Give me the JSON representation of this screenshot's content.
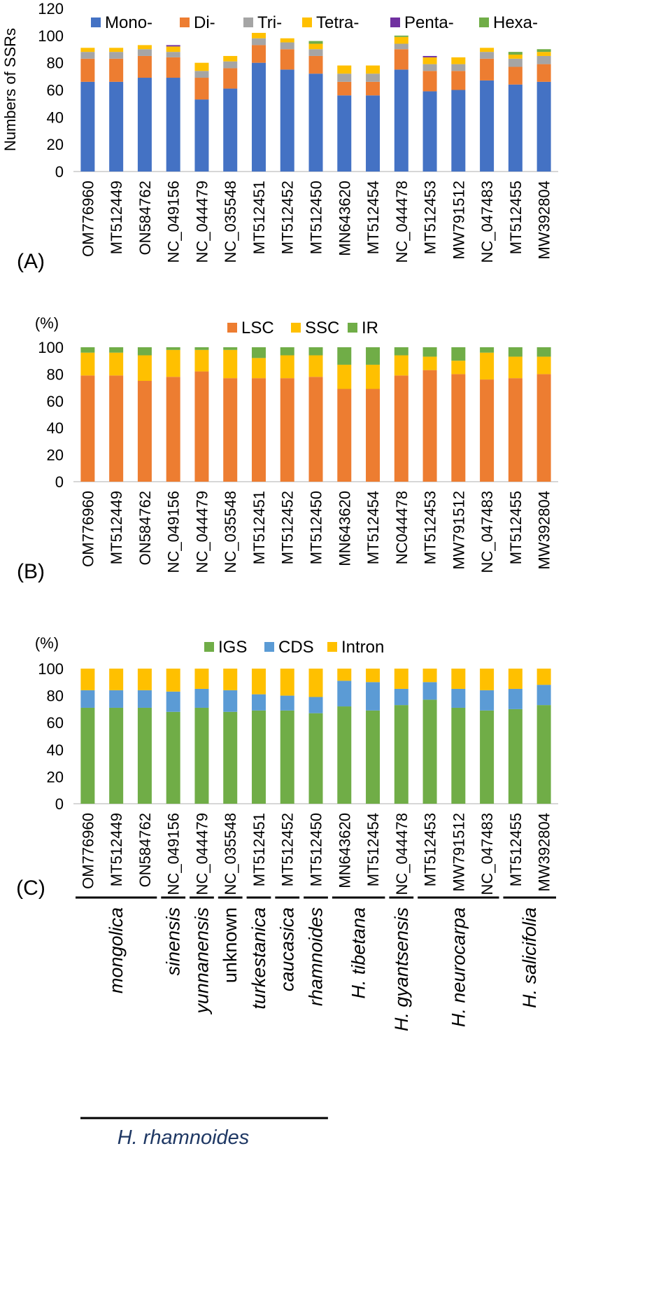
{
  "accessions_A": [
    "OM776960",
    "MT512449",
    "ON584762",
    "NC_049156",
    "NC_044479",
    "NC_035548",
    "MT512451",
    "MT512452",
    "MT512450",
    "MN643620",
    "MT512454",
    "NC_044478",
    "MT512453",
    "MW791512",
    "NC_047483",
    "MT512455",
    "MW392804"
  ],
  "accessions_B": [
    "OM776960",
    "MT512449",
    "ON584762",
    "NC_049156",
    "NC_044479",
    "NC_035548",
    "MT512451",
    "MT512452",
    "MT512450",
    "MN643620",
    "MT512454",
    "NC044478",
    "MT512453",
    "MW791512",
    "NC_047483",
    "MT512455",
    "MW392804"
  ],
  "accessions_C": [
    "OM776960",
    "MT512449",
    "ON584762",
    "NC_049156",
    "NC_044479",
    "NC_035548",
    "MT512451",
    "MT512452",
    "MT512450",
    "MN643620",
    "MT512454",
    "NC_044478",
    "MT512453",
    "MW791512",
    "NC_047483",
    "MT512455",
    "MW392804"
  ],
  "chart_data": [
    {
      "type": "bar",
      "stacked": true,
      "panel_label": "(A)",
      "ylabel": "Numbers of SSRs",
      "ylim": [
        0,
        120
      ],
      "yticks": [
        "0",
        "20",
        "40",
        "60",
        "80",
        "100",
        "120"
      ],
      "legend_position": "top",
      "series": [
        {
          "name": "Mono-",
          "color": "#4472C4",
          "values": [
            66,
            66,
            69,
            69,
            53,
            61,
            80,
            75,
            72,
            56,
            56,
            75,
            59,
            60,
            67,
            64,
            66
          ]
        },
        {
          "name": "Di-",
          "color": "#ED7D31",
          "values": [
            17,
            17,
            16,
            15,
            16,
            15,
            13,
            15,
            13,
            10,
            10,
            15,
            15,
            14,
            16,
            13,
            13
          ]
        },
        {
          "name": "Tri-",
          "color": "#A5A5A5",
          "values": [
            5,
            5,
            5,
            4,
            5,
            5,
            5,
            5,
            5,
            6,
            6,
            4,
            5,
            5,
            5,
            6,
            6
          ]
        },
        {
          "name": "Tetra-",
          "color": "#FFC000",
          "values": [
            3,
            3,
            3,
            4,
            6,
            4,
            4,
            3,
            4,
            6,
            6,
            5,
            5,
            5,
            3,
            3,
            3
          ]
        },
        {
          "name": "Penta-",
          "color": "#7030A0",
          "values": [
            0,
            0,
            0,
            1,
            0,
            0,
            0,
            0,
            0,
            0,
            0,
            0,
            1,
            0,
            0,
            0,
            0
          ]
        },
        {
          "name": "Hexa-",
          "color": "#70AD47",
          "values": [
            0,
            0,
            0,
            0,
            0,
            0,
            0,
            0,
            2,
            0,
            0,
            1,
            0,
            0,
            0,
            2,
            2
          ]
        }
      ]
    },
    {
      "type": "bar",
      "stacked": true,
      "panel_label": "(B)",
      "unit_label": "(%)",
      "ylim": [
        0,
        100
      ],
      "yticks": [
        "0",
        "20",
        "40",
        "60",
        "80",
        "100"
      ],
      "legend_position": "top",
      "series": [
        {
          "name": "LSC",
          "color": "#ED7D31",
          "values": [
            79,
            79,
            75,
            78,
            82,
            77,
            77,
            77,
            78,
            69,
            69,
            79,
            83,
            80,
            76,
            77,
            80
          ]
        },
        {
          "name": "SSC",
          "color": "#FFC000",
          "values": [
            17,
            17,
            19,
            20,
            16,
            21,
            15,
            17,
            16,
            18,
            18,
            15,
            10,
            10,
            20,
            16,
            13
          ]
        },
        {
          "name": "IR",
          "color": "#70AD47",
          "values": [
            4,
            4,
            6,
            2,
            2,
            2,
            8,
            6,
            6,
            13,
            13,
            6,
            7,
            10,
            4,
            7,
            7
          ]
        }
      ]
    },
    {
      "type": "bar",
      "stacked": true,
      "panel_label": "(C)",
      "unit_label": "(%)",
      "ylim": [
        0,
        100
      ],
      "yticks": [
        "0",
        "20",
        "40",
        "60",
        "80",
        "100"
      ],
      "legend_position": "top",
      "series": [
        {
          "name": "IGS",
          "color": "#70AD47",
          "values": [
            71,
            71,
            71,
            68,
            71,
            68,
            69,
            69,
            67,
            72,
            69,
            73,
            77,
            71,
            69,
            70,
            73
          ]
        },
        {
          "name": "CDS",
          "color": "#5B9BD5",
          "values": [
            13,
            13,
            13,
            15,
            14,
            16,
            12,
            11,
            12,
            19,
            21,
            12,
            13,
            14,
            15,
            15,
            15
          ]
        },
        {
          "name": "Intron",
          "color": "#FFC000",
          "values": [
            16,
            16,
            16,
            17,
            15,
            16,
            19,
            20,
            21,
            9,
            10,
            15,
            10,
            15,
            16,
            15,
            12
          ]
        }
      ]
    }
  ],
  "species_groups": [
    {
      "label": "mongolica",
      "start": 0,
      "end": 2,
      "italic": true
    },
    {
      "label": "sinensis",
      "start": 3,
      "end": 3,
      "italic": true
    },
    {
      "label": "yunnanensis",
      "start": 4,
      "end": 4,
      "italic": true
    },
    {
      "label": "unknown",
      "start": 5,
      "end": 5,
      "italic": false
    },
    {
      "label": "turkestanica",
      "start": 6,
      "end": 6,
      "italic": true
    },
    {
      "label": "caucasica",
      "start": 7,
      "end": 7,
      "italic": true
    },
    {
      "label": "rhamnoides",
      "start": 8,
      "end": 8,
      "italic": true
    },
    {
      "label": "H. tibetana",
      "start": 9,
      "end": 10,
      "italic": true
    },
    {
      "label": "H. gyantsensis",
      "start": 11,
      "end": 11,
      "italic": true
    },
    {
      "label": "H. neurocarpa",
      "start": 12,
      "end": 14,
      "italic": true
    },
    {
      "label": "H. salicifolia",
      "start": 15,
      "end": 16,
      "italic": true
    }
  ],
  "super_group": {
    "label": "H. rhamnoides",
    "color": "#1F3864"
  }
}
